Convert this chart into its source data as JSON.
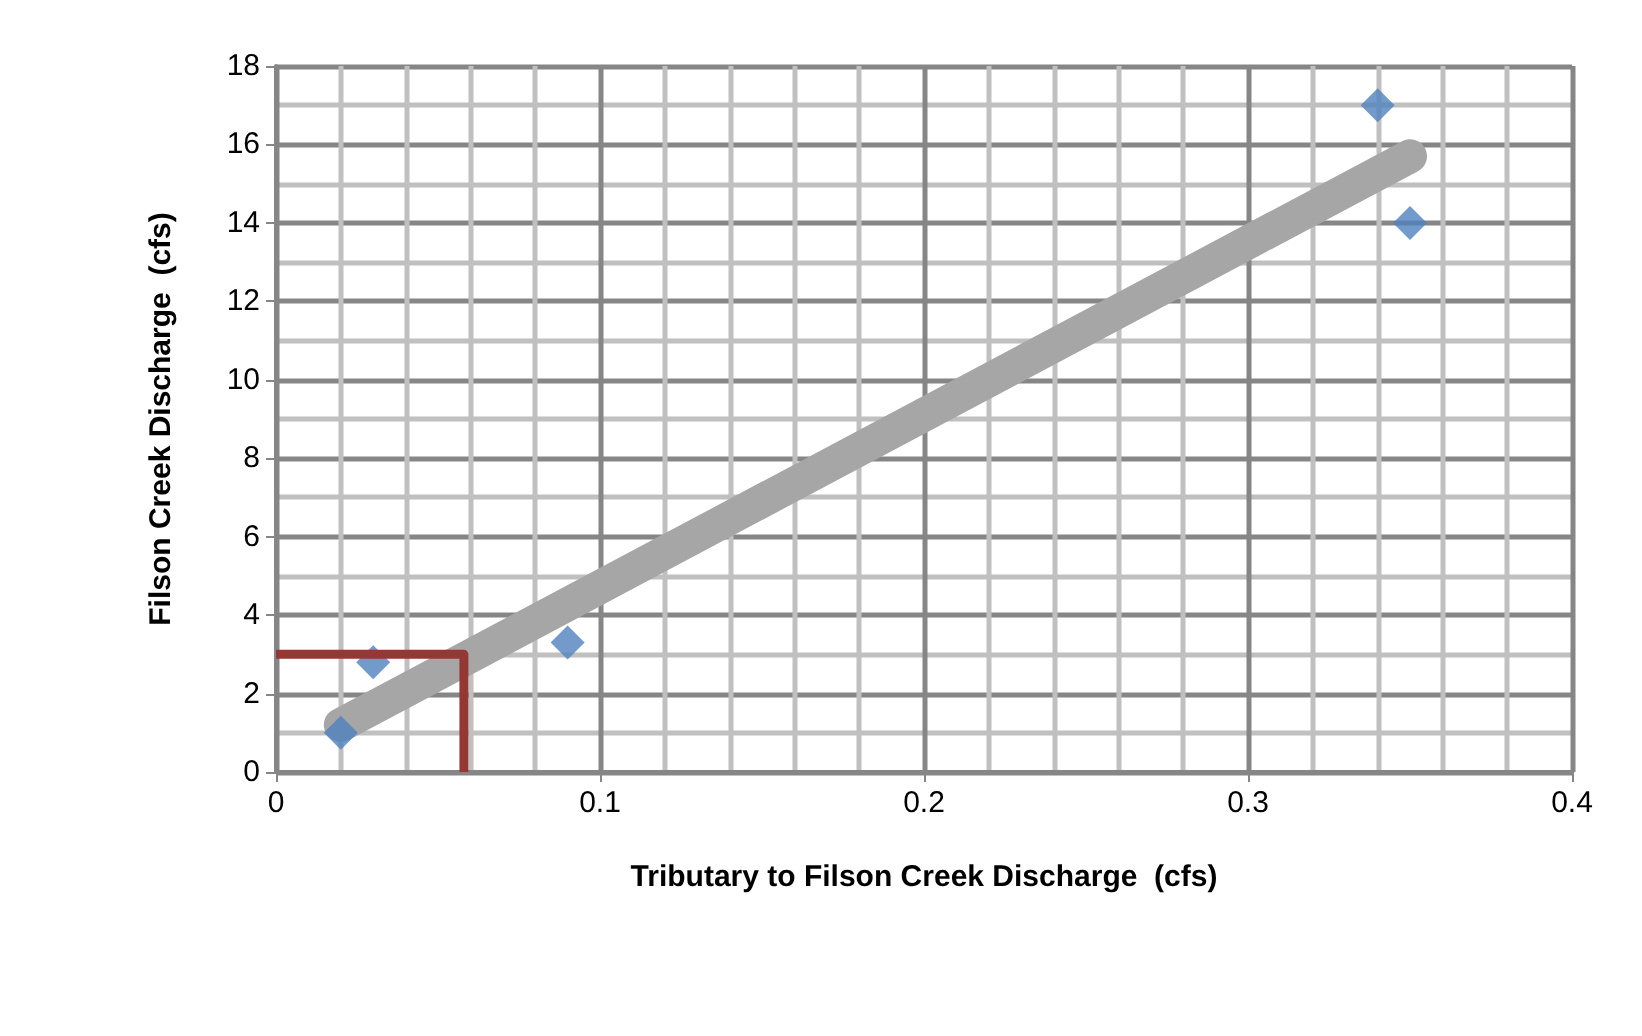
{
  "chart_data": {
    "type": "scatter",
    "xlabel": "Tributary to Filson Creek Discharge  (cfs)",
    "ylabel": "Filson Creek Discharge  (cfs)",
    "xlim": [
      0,
      0.4
    ],
    "xticks": [
      0,
      0.1,
      0.2,
      0.3,
      0.4
    ],
    "ylim": [
      0,
      18
    ],
    "yticks": [
      0,
      2,
      4,
      6,
      8,
      10,
      12,
      14,
      16,
      18
    ],
    "grid": true,
    "marker": "diamond",
    "series": [
      {
        "type": "line",
        "color": "#a6a6a6",
        "x": [
          0.02,
          0.35
        ],
        "values": [
          1.2,
          15.7
        ],
        "marker": "none",
        "line_style": "solid"
      },
      {
        "color": "#4f81bd",
        "x": [
          0.02,
          0.03,
          0.09,
          0.34,
          0.35
        ],
        "values": [
          1,
          2.8,
          3.3,
          17,
          14
        ]
      },
      {
        "type": "line",
        "color": "#953735",
        "x": [
          0,
          0.058,
          0.058
        ],
        "values": [
          3,
          3,
          0
        ],
        "marker": "none",
        "line_style": "solid"
      }
    ]
  }
}
